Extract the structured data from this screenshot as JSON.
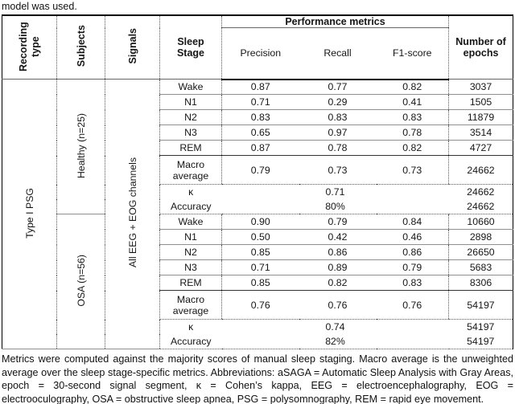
{
  "page": {
    "intro_text": "model was used.",
    "footnote": "Metrics were computed against the majority scores of manual sleep staging. Macro average is the unweighted average over the sleep stage-specific metrics. Abbreviations: aSAGA = Automatic Sleep Analysis with Gray Areas, epoch = 30-second signal segment, κ = Cohen’s kappa, EEG = electroencephalography, EOG = electrooculography, OSA = obstructive sleep apnea, PSG = polysomnography, REM = rapid eye movement."
  },
  "table": {
    "headers": {
      "recording_type": "Recording type",
      "subjects": "Subjects",
      "signals": "Signals",
      "sleep_stage": "Sleep Stage",
      "performance_metrics": "Performance metrics",
      "precision": "Precision",
      "recall": "Recall",
      "f1_score": "F1-score",
      "number_of_epochs": "Number of epochs"
    },
    "recording_type": "Type I PSG",
    "signals": "All EEG + EOG channels",
    "groups": [
      {
        "subjects": "Healthy (n=25)",
        "stages": [
          {
            "stage": "Wake",
            "precision": "0.87",
            "recall": "0.77",
            "f1": "0.82",
            "epochs": "3037"
          },
          {
            "stage": "N1",
            "precision": "0.71",
            "recall": "0.29",
            "f1": "0.41",
            "epochs": "1505"
          },
          {
            "stage": "N2",
            "precision": "0.83",
            "recall": "0.83",
            "f1": "0.83",
            "epochs": "11879"
          },
          {
            "stage": "N3",
            "precision": "0.65",
            "recall": "0.97",
            "f1": "0.78",
            "epochs": "3514"
          },
          {
            "stage": "REM",
            "precision": "0.87",
            "recall": "0.78",
            "f1": "0.82",
            "epochs": "4727"
          }
        ],
        "macro": {
          "label": "Macro average",
          "precision": "0.79",
          "recall": "0.73",
          "f1": "0.73",
          "epochs": "24662"
        },
        "kappa": {
          "label": "κ",
          "value": "0.71",
          "epochs": "24662"
        },
        "accuracy": {
          "label": "Accuracy",
          "value": "80%",
          "epochs": "24662"
        }
      },
      {
        "subjects": "OSA (n=56)",
        "stages": [
          {
            "stage": "Wake",
            "precision": "0.90",
            "recall": "0.79",
            "f1": "0.84",
            "epochs": "10660"
          },
          {
            "stage": "N1",
            "precision": "0.50",
            "recall": "0.42",
            "f1": "0.46",
            "epochs": "2898"
          },
          {
            "stage": "N2",
            "precision": "0.85",
            "recall": "0.86",
            "f1": "0.86",
            "epochs": "26650"
          },
          {
            "stage": "N3",
            "precision": "0.71",
            "recall": "0.89",
            "f1": "0.79",
            "epochs": "5683"
          },
          {
            "stage": "REM",
            "precision": "0.85",
            "recall": "0.82",
            "f1": "0.83",
            "epochs": "8306"
          }
        ],
        "macro": {
          "label": "Macro average",
          "precision": "0.76",
          "recall": "0.76",
          "f1": "0.76",
          "epochs": "54197"
        },
        "kappa": {
          "label": "κ",
          "value": "0.74",
          "epochs": "54197"
        },
        "accuracy": {
          "label": "Accuracy",
          "value": "82%",
          "epochs": "54197"
        }
      }
    ]
  }
}
